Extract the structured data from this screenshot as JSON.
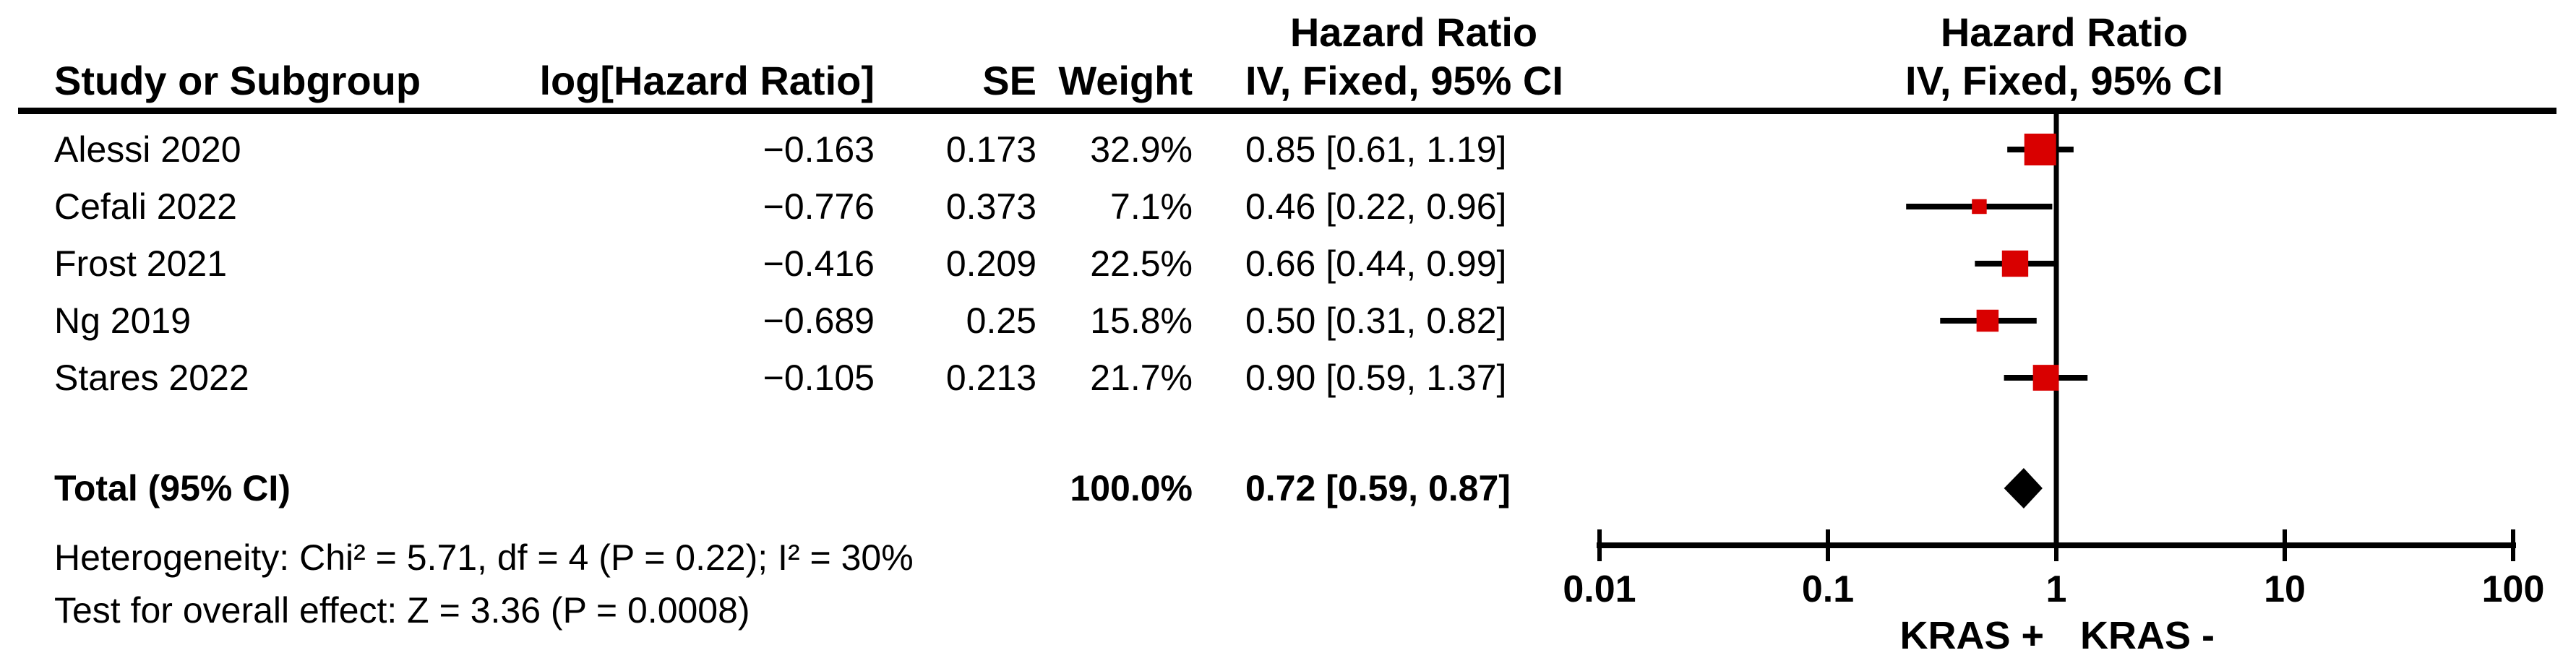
{
  "figure": {
    "columns": {
      "hr_header_text_col": "Hazard Ratio",
      "hr_header_plot_col": "Hazard Ratio",
      "study": "Study or Subgroup",
      "loghr": "log[Hazard Ratio]",
      "se": "SE",
      "weight": "Weight",
      "ci_text_col": "IV, Fixed, 95% CI",
      "ci_plot_col": "IV, Fixed, 95% CI"
    },
    "rows": [
      {
        "study": "Alessi 2020",
        "loghr": "−0.163",
        "se": "0.173",
        "weight": "32.9%",
        "ci": "0.85 [0.61, 1.19]"
      },
      {
        "study": "Cefali 2022",
        "loghr": "−0.776",
        "se": "0.373",
        "weight": "7.1%",
        "ci": "0.46 [0.22, 0.96]"
      },
      {
        "study": "Frost 2021",
        "loghr": "−0.416",
        "se": "0.209",
        "weight": "22.5%",
        "ci": "0.66 [0.44, 0.99]"
      },
      {
        "study": "Ng 2019",
        "loghr": "−0.689",
        "se": "0.25",
        "weight": "15.8%",
        "ci": "0.50 [0.31, 0.82]"
      },
      {
        "study": "Stares 2022",
        "loghr": "−0.105",
        "se": "0.213",
        "weight": "21.7%",
        "ci": "0.90 [0.59, 1.37]"
      }
    ],
    "total": {
      "label": "Total (95% CI)",
      "weight": "100.0%",
      "ci": "0.72 [0.59, 0.87]"
    },
    "heterogeneity": "Heterogeneity: Chi² = 5.71, df = 4 (P = 0.22); I² = 30%",
    "overall_effect": "Test for overall effect: Z = 3.36 (P = 0.0008)"
  },
  "chart_data": {
    "type": "forest",
    "scale": "log10",
    "effect_measure": "Hazard Ratio",
    "model": "IV, Fixed, 95% CI",
    "studies": [
      {
        "name": "Alessi 2020",
        "log_hr": -0.163,
        "se": 0.173,
        "weight_pct": 32.9,
        "hr": 0.85,
        "ci_low": 0.61,
        "ci_high": 1.19
      },
      {
        "name": "Cefali 2022",
        "log_hr": -0.776,
        "se": 0.373,
        "weight_pct": 7.1,
        "hr": 0.46,
        "ci_low": 0.22,
        "ci_high": 0.96
      },
      {
        "name": "Frost 2021",
        "log_hr": -0.416,
        "se": 0.209,
        "weight_pct": 22.5,
        "hr": 0.66,
        "ci_low": 0.44,
        "ci_high": 0.99
      },
      {
        "name": "Ng 2019",
        "log_hr": -0.689,
        "se": 0.25,
        "weight_pct": 15.8,
        "hr": 0.5,
        "ci_low": 0.31,
        "ci_high": 0.82
      },
      {
        "name": "Stares 2022",
        "log_hr": -0.105,
        "se": 0.213,
        "weight_pct": 21.7,
        "hr": 0.9,
        "ci_low": 0.59,
        "ci_high": 1.37
      }
    ],
    "overall": {
      "label": "Total (95% CI)",
      "weight_pct": 100.0,
      "hr": 0.72,
      "ci_low": 0.59,
      "ci_high": 0.87
    },
    "heterogeneity": {
      "chi2": 5.71,
      "df": 4,
      "p": 0.22,
      "i2_pct": 30
    },
    "overall_effect_test": {
      "z": 3.36,
      "p": 0.0008
    },
    "axis": {
      "min": 0.01,
      "max": 100,
      "ticks": [
        0.01,
        0.1,
        1,
        10,
        100
      ],
      "tick_labels": [
        "0.01",
        "0.1",
        "1",
        "10",
        "100"
      ],
      "favours_left_label": "KRAS +",
      "favours_right_label": "KRAS -"
    },
    "colors": {
      "square": "#d90000",
      "line": "#000000",
      "diamond": "#000000"
    }
  }
}
